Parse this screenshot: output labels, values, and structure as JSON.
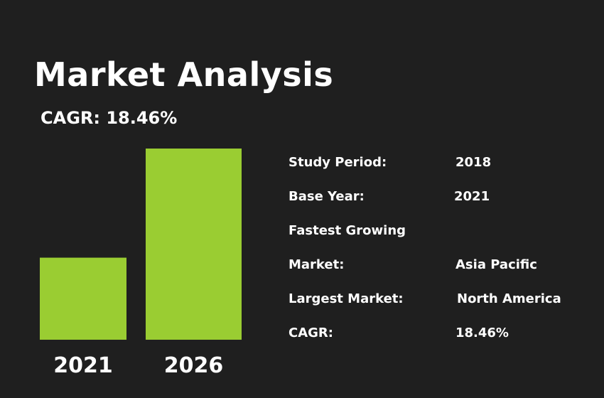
{
  "colors": {
    "background": "#1f1f1f",
    "bar": "#9acd32",
    "text": "#ffffff"
  },
  "header": {
    "title": "Market Analysis",
    "subtitle": "CAGR: 18.46%"
  },
  "chart_data": {
    "type": "bar",
    "categories": [
      "2021",
      "2026"
    ],
    "values": [
      1,
      2.33
    ],
    "grid": false,
    "legend": "none"
  },
  "info": [
    {
      "label": "Study Period:",
      "value": "2018"
    },
    {
      "label": "Base Year:",
      "value": "2021"
    },
    {
      "label": "Fastest Growing",
      "value": ""
    },
    {
      "label": "Market:",
      "value": "Asia Pacific"
    },
    {
      "label": "Largest Market:",
      "value": "North America"
    },
    {
      "label": "CAGR:",
      "value": "18.46%"
    }
  ]
}
